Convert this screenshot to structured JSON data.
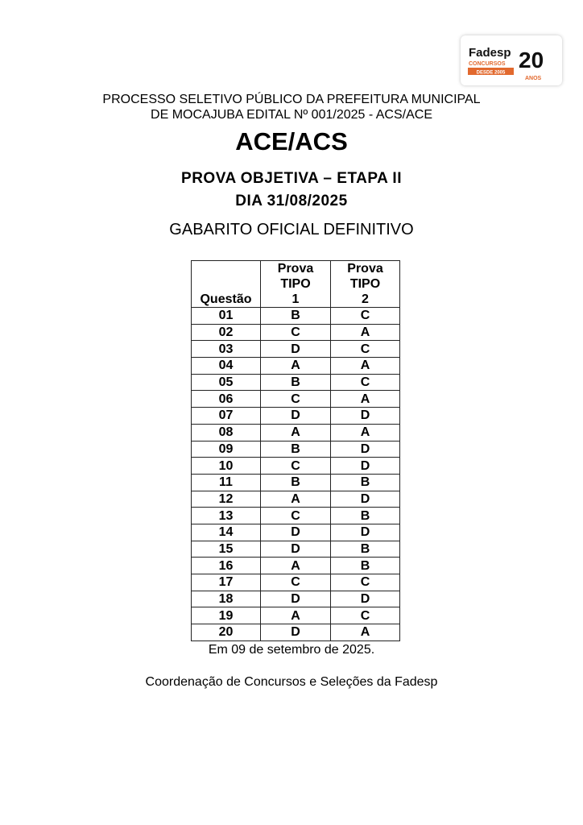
{
  "logo": {
    "brand": "Fadesp",
    "sub": "CONCURSOS",
    "since": "DESDE 2005",
    "years": "20",
    "years_label": "ANOS",
    "accent": "#e2692e"
  },
  "header": {
    "line1": "PROCESSO SELETIVO PÚBLICO DA PREFEITURA MUNICIPAL",
    "line2": "DE MOCAJUBA EDITAL Nº 001/2025 - ACS/ACE",
    "title": "ACE/ACS",
    "subtitle": "PROVA OBJETIVA – ETAPA II",
    "date": "DIA 31/08/2025",
    "doc_title": "GABARITO OFICIAL DEFINITIVO"
  },
  "table": {
    "headers": [
      "Questão",
      "Prova TIPO 1",
      "Prova TIPO 2"
    ],
    "rows": [
      [
        "01",
        "B",
        "C"
      ],
      [
        "02",
        "C",
        "A"
      ],
      [
        "03",
        "D",
        "C"
      ],
      [
        "04",
        "A",
        "A"
      ],
      [
        "05",
        "B",
        "C"
      ],
      [
        "06",
        "C",
        "A"
      ],
      [
        "07",
        "D",
        "D"
      ],
      [
        "08",
        "A",
        "A"
      ],
      [
        "09",
        "B",
        "D"
      ],
      [
        "10",
        "C",
        "D"
      ],
      [
        "11",
        "B",
        "B"
      ],
      [
        "12",
        "A",
        "D"
      ],
      [
        "13",
        "C",
        "B"
      ],
      [
        "14",
        "D",
        "D"
      ],
      [
        "15",
        "D",
        "B"
      ],
      [
        "16",
        "A",
        "B"
      ],
      [
        "17",
        "C",
        "C"
      ],
      [
        "18",
        "D",
        "D"
      ],
      [
        "19",
        "A",
        "C"
      ],
      [
        "20",
        "D",
        "A"
      ]
    ]
  },
  "footer": {
    "date_line": "Em 09 de setembro de 2025.",
    "signature": "Coordenação de Concursos e Seleções da Fadesp"
  }
}
